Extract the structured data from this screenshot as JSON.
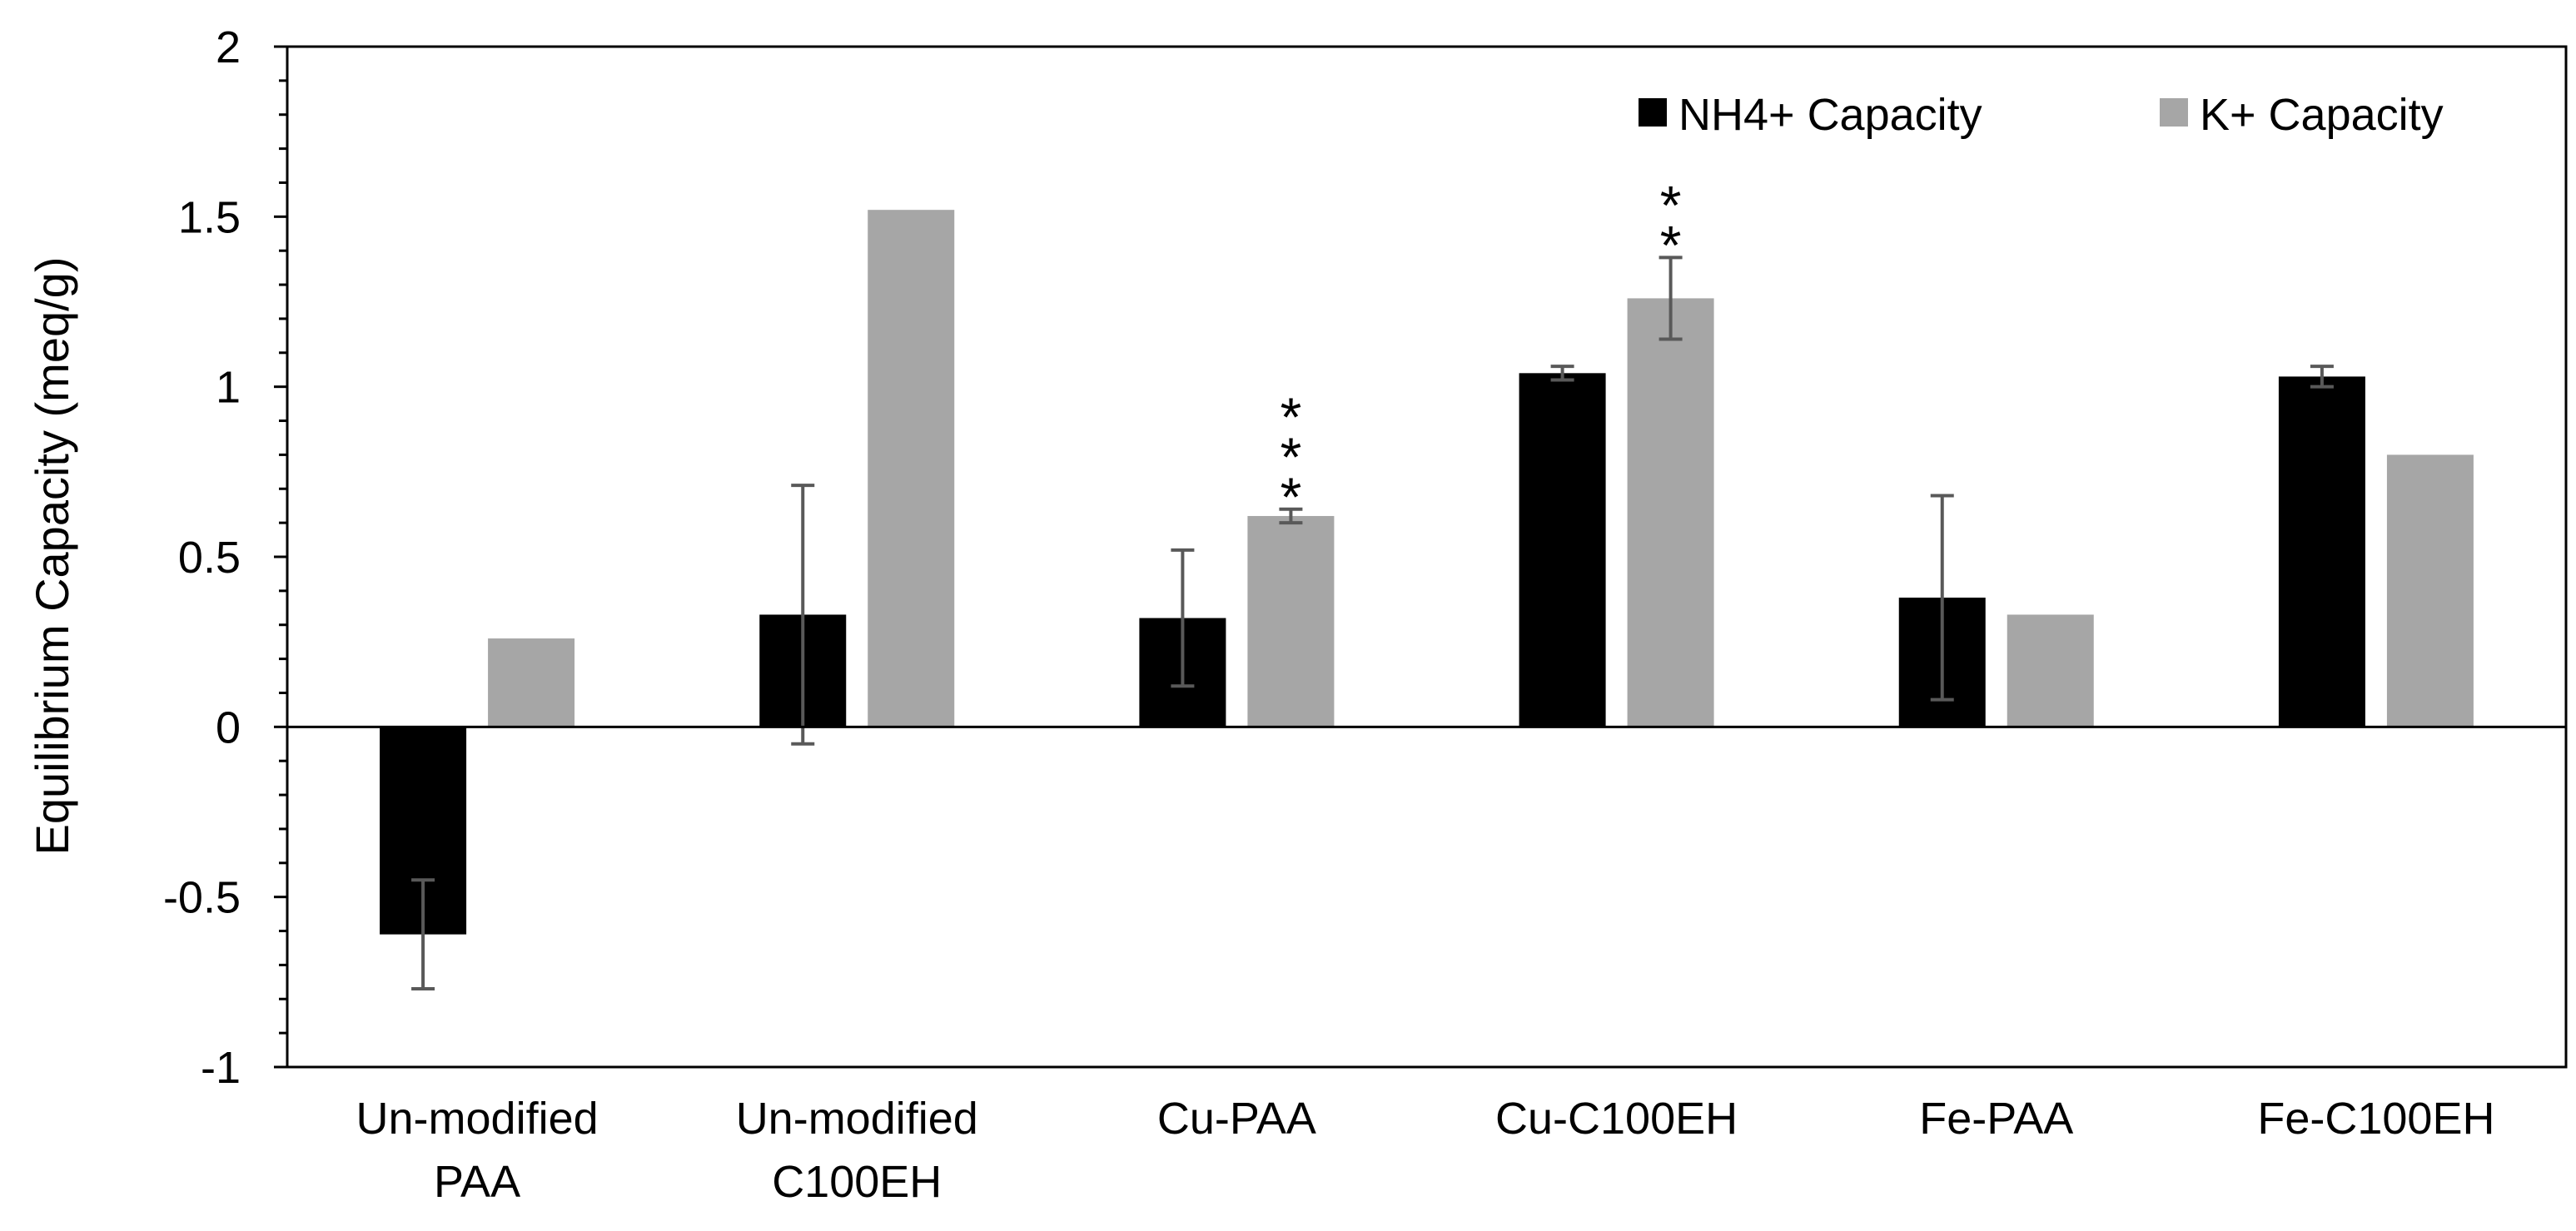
{
  "chart_data": {
    "type": "bar",
    "title": "",
    "xlabel": "",
    "ylabel": "Equilibrium Capacity (meq/g)",
    "ylim": [
      -1,
      2
    ],
    "yticks": [
      -1,
      -0.5,
      0,
      0.5,
      1,
      1.5,
      2
    ],
    "ytick_labels": [
      "-1",
      "-0.5",
      "0",
      "0.5",
      "1",
      "1.5",
      "2"
    ],
    "grid": false,
    "legend_position": "top-right",
    "categories": [
      [
        "Un-modified",
        "PAA"
      ],
      [
        "Un-modified",
        "C100EH"
      ],
      [
        "Cu-PAA"
      ],
      [
        "Cu-C100EH"
      ],
      [
        "Fe-PAA"
      ],
      [
        "Fe-C100EH"
      ]
    ],
    "series": [
      {
        "name": "NH4+ Capacity",
        "color": "#000000",
        "values": [
          -0.61,
          0.33,
          0.32,
          1.04,
          0.38,
          1.03
        ],
        "errors": [
          0.16,
          0.38,
          0.2,
          0.02,
          0.3,
          0.03
        ]
      },
      {
        "name": "K+ Capacity",
        "color": "#a6a6a6",
        "values": [
          0.26,
          1.52,
          0.62,
          1.26,
          0.33,
          0.8
        ],
        "errors": [
          null,
          null,
          0.02,
          0.12,
          null,
          null
        ]
      }
    ],
    "annotations": [
      {
        "category_index": 2,
        "series_index": 1,
        "text": "*",
        "count": 3
      },
      {
        "category_index": 3,
        "series_index": 1,
        "text": "*",
        "count": 2
      }
    ]
  }
}
